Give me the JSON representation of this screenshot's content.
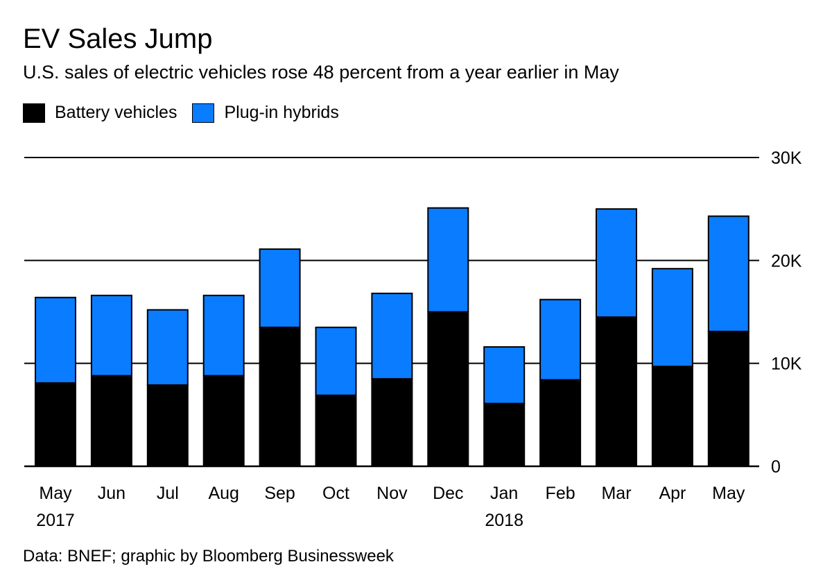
{
  "colors": {
    "battery": "#000000",
    "plugin": "#0a7cff",
    "gridline": "#000000"
  },
  "chart_data": {
    "type": "bar",
    "stacked": true,
    "title": "EV Sales Jump",
    "subtitle": "U.S. sales of electric vehicles rose 48 percent from a year earlier in May",
    "categories": [
      "May",
      "Jun",
      "Jul",
      "Aug",
      "Sep",
      "Oct",
      "Nov",
      "Dec",
      "Jan",
      "Feb",
      "Mar",
      "Apr",
      "May"
    ],
    "year_labels": [
      {
        "category_index": 0,
        "label": "2017"
      },
      {
        "category_index": 8,
        "label": "2018"
      }
    ],
    "series": [
      {
        "name": "Battery vehicles",
        "color": "#000000",
        "values": [
          8100,
          8800,
          7900,
          8800,
          13500,
          6900,
          8500,
          15000,
          6100,
          8400,
          14500,
          9700,
          13100
        ]
      },
      {
        "name": "Plug-in hybrids",
        "color": "#0a7cff",
        "values": [
          8300,
          7800,
          7300,
          7800,
          7600,
          6600,
          8300,
          10100,
          5500,
          7800,
          10500,
          9500,
          11200
        ]
      }
    ],
    "ylim": [
      0,
      30000
    ],
    "yticks": [
      0,
      10000,
      20000,
      30000
    ],
    "ytick_labels": [
      "0",
      "10K",
      "20K",
      "30K"
    ],
    "y_axis_position": "right",
    "grid": true,
    "legend_position": "top-left",
    "source": "Data: BNEF; graphic by Bloomberg Businessweek"
  }
}
